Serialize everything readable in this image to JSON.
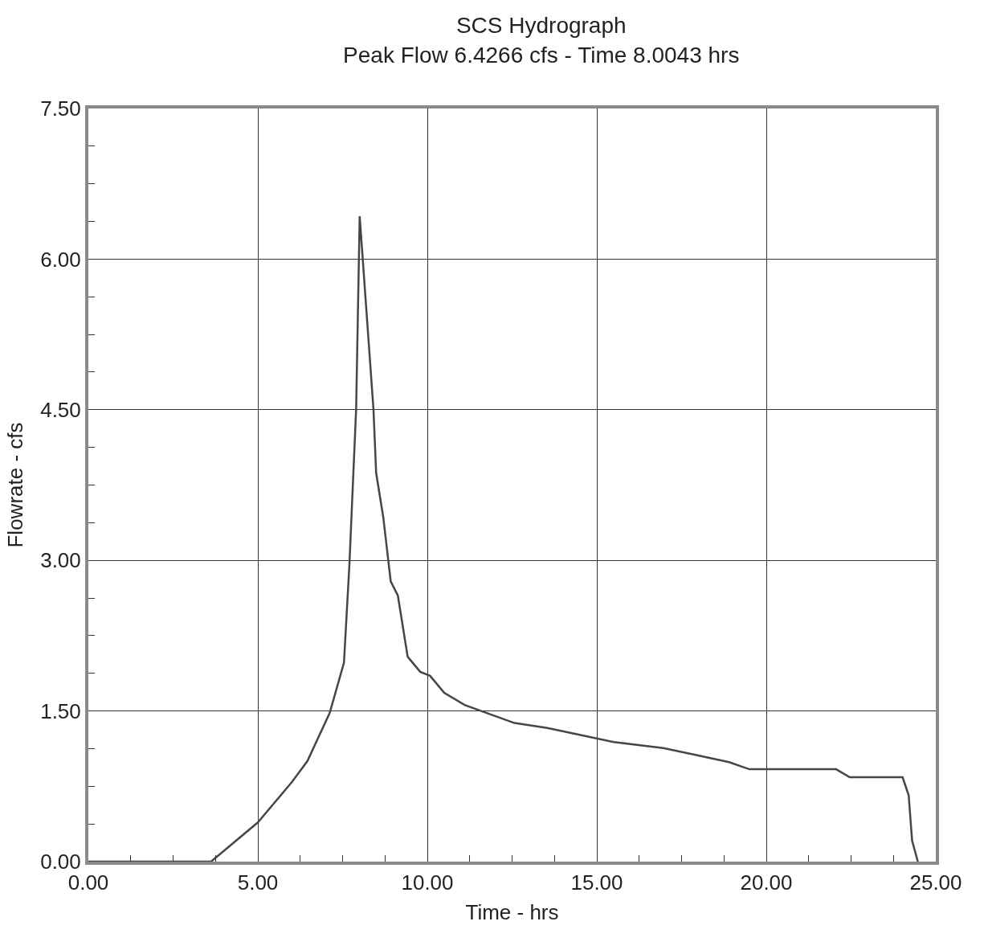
{
  "chart_data": {
    "type": "line",
    "title": "SCS Hydrograph",
    "subtitle": "Peak Flow 6.4266 cfs - Time 8.0043 hrs",
    "xlabel": "Time - hrs",
    "ylabel": "Flowrate - cfs",
    "series": [
      {
        "color": "#3f4a48",
        "x": [
          0,
          3.62,
          5.0,
          6.0,
          6.46,
          7.12,
          7.54,
          7.7,
          7.9,
          8.0043,
          8.41,
          8.49,
          8.7,
          8.92,
          9.13,
          9.42,
          9.79,
          10.08,
          10.5,
          11.1,
          11.67,
          12.57,
          13.54,
          14.52,
          15.5,
          16.96,
          17.94,
          18.9,
          19.5,
          22.06,
          22.46,
          24.02,
          24.2,
          24.3,
          24.47
        ],
        "values": [
          0,
          0,
          0.39,
          0.79,
          1.0,
          1.48,
          1.98,
          2.95,
          4.51,
          6.4266,
          4.51,
          3.87,
          3.43,
          2.79,
          2.65,
          2.04,
          1.89,
          1.85,
          1.68,
          1.56,
          1.49,
          1.38,
          1.33,
          1.26,
          1.19,
          1.13,
          1.06,
          0.99,
          0.92,
          0.92,
          0.84,
          0.84,
          0.66,
          0.21,
          0
        ]
      }
    ],
    "xlim": [
      0,
      25
    ],
    "ylim": [
      0,
      7.5
    ],
    "xticks": [
      {
        "value": 0,
        "label": "0.00"
      },
      {
        "value": 5,
        "label": "5.00"
      },
      {
        "value": 10,
        "label": "10.00"
      },
      {
        "value": 15,
        "label": "15.00"
      },
      {
        "value": 20,
        "label": "20.00"
      },
      {
        "value": 25,
        "label": "25.00"
      }
    ],
    "yticks": [
      {
        "value": 0,
        "label": "0.00"
      },
      {
        "value": 1.5,
        "label": "1.50"
      },
      {
        "value": 3,
        "label": "3.00"
      },
      {
        "value": 4.5,
        "label": "4.50"
      },
      {
        "value": 6,
        "label": "6.00"
      },
      {
        "value": 7.5,
        "label": "7.50"
      }
    ],
    "grid": true,
    "marker": "none",
    "line_style": "solid"
  }
}
